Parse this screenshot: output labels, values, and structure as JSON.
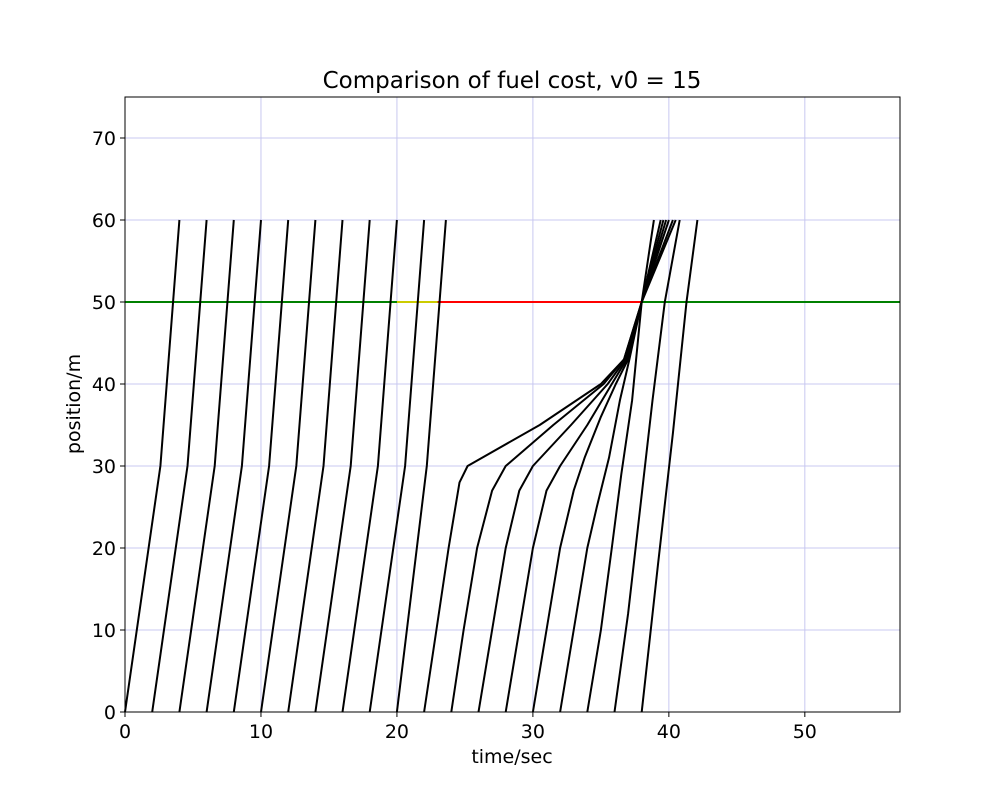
{
  "chart_data": {
    "type": "line",
    "title": "Comparison of fuel cost, v0 = 15",
    "xlabel": "time/sec",
    "ylabel": "position/m",
    "xlim": [
      0,
      57
    ],
    "ylim": [
      0,
      75
    ],
    "xticks": [
      0,
      10,
      20,
      30,
      40,
      50
    ],
    "yticks": [
      0,
      10,
      20,
      30,
      40,
      50,
      60,
      70
    ],
    "grid": true,
    "grid_color": "#c8c8f0",
    "legend": "none",
    "stop_line": {
      "position": 50,
      "base_color": "#008000",
      "segments": [
        {
          "t_start": 20,
          "t_end": 23,
          "color": "#cccc00"
        },
        {
          "t_start": 23,
          "t_end": 38,
          "color": "#ff0000"
        }
      ]
    },
    "trajectory_color": "#000000",
    "series": [
      {
        "values": [
          [
            0,
            0
          ],
          [
            2.6,
            30
          ],
          [
            4,
            60
          ]
        ]
      },
      {
        "values": [
          [
            2,
            0
          ],
          [
            4.6,
            30
          ],
          [
            6,
            60
          ]
        ]
      },
      {
        "values": [
          [
            4,
            0
          ],
          [
            6.6,
            30
          ],
          [
            8,
            60
          ]
        ]
      },
      {
        "values": [
          [
            6,
            0
          ],
          [
            8.6,
            30
          ],
          [
            10,
            60
          ]
        ]
      },
      {
        "values": [
          [
            8,
            0
          ],
          [
            10.6,
            30
          ],
          [
            12,
            60
          ]
        ]
      },
      {
        "values": [
          [
            10,
            0
          ],
          [
            12.6,
            30
          ],
          [
            14,
            60
          ]
        ]
      },
      {
        "values": [
          [
            12,
            0
          ],
          [
            14.6,
            30
          ],
          [
            16,
            60
          ]
        ]
      },
      {
        "values": [
          [
            14,
            0
          ],
          [
            16.6,
            30
          ],
          [
            18,
            60
          ]
        ]
      },
      {
        "values": [
          [
            16,
            0
          ],
          [
            18.6,
            30
          ],
          [
            20,
            60
          ]
        ]
      },
      {
        "values": [
          [
            18,
            0
          ],
          [
            20.6,
            30
          ],
          [
            22,
            60
          ]
        ]
      },
      {
        "values": [
          [
            20,
            0
          ],
          [
            22.2,
            30
          ],
          [
            23.6,
            60
          ]
        ]
      },
      {
        "values": [
          [
            22,
            0
          ],
          [
            22.9,
            10
          ],
          [
            23.8,
            20
          ],
          [
            24.6,
            28
          ],
          [
            25.2,
            30
          ],
          [
            30.5,
            35
          ],
          [
            35,
            40
          ],
          [
            36.7,
            43
          ],
          [
            38,
            50
          ],
          [
            40.5,
            60
          ]
        ]
      },
      {
        "values": [
          [
            24,
            0
          ],
          [
            24.9,
            10
          ],
          [
            25.9,
            20
          ],
          [
            27,
            27
          ],
          [
            28,
            30
          ],
          [
            31.5,
            35
          ],
          [
            35.2,
            40
          ],
          [
            36.7,
            43
          ],
          [
            38,
            50
          ],
          [
            40.3,
            60
          ]
        ]
      },
      {
        "values": [
          [
            26,
            0
          ],
          [
            27,
            10
          ],
          [
            28,
            20
          ],
          [
            29,
            27
          ],
          [
            30,
            30
          ],
          [
            32.8,
            35
          ],
          [
            35.5,
            40
          ],
          [
            36.8,
            43
          ],
          [
            38,
            50
          ],
          [
            40,
            60
          ]
        ]
      },
      {
        "values": [
          [
            28,
            0
          ],
          [
            29,
            10
          ],
          [
            30,
            20
          ],
          [
            31,
            27
          ],
          [
            32,
            30
          ],
          [
            34,
            35
          ],
          [
            35.8,
            40
          ],
          [
            36.9,
            43
          ],
          [
            38,
            50
          ],
          [
            39.8,
            60
          ]
        ]
      },
      {
        "values": [
          [
            30,
            0
          ],
          [
            31,
            10
          ],
          [
            32,
            20
          ],
          [
            33,
            27
          ],
          [
            33.8,
            31
          ],
          [
            35,
            36
          ],
          [
            36.1,
            40
          ],
          [
            37,
            43
          ],
          [
            38,
            50
          ],
          [
            39.6,
            60
          ]
        ]
      },
      {
        "values": [
          [
            32,
            0
          ],
          [
            33,
            10
          ],
          [
            34,
            20
          ],
          [
            34.7,
            25
          ],
          [
            35.6,
            31
          ],
          [
            36.4,
            38
          ],
          [
            37.1,
            43
          ],
          [
            38,
            50
          ],
          [
            39.4,
            60
          ]
        ]
      },
      {
        "values": [
          [
            34,
            0
          ],
          [
            35,
            10
          ],
          [
            35.8,
            20
          ],
          [
            36.5,
            29
          ],
          [
            37.3,
            38
          ],
          [
            38,
            50
          ],
          [
            38.9,
            60
          ]
        ]
      },
      {
        "values": [
          [
            36,
            0
          ],
          [
            37,
            12
          ],
          [
            37.9,
            25
          ],
          [
            38.8,
            38
          ],
          [
            39.7,
            50
          ],
          [
            40.8,
            60
          ]
        ]
      },
      {
        "values": [
          [
            38,
            0
          ],
          [
            39.2,
            18
          ],
          [
            40.3,
            34
          ],
          [
            41.3,
            50
          ],
          [
            42.1,
            60
          ]
        ]
      }
    ]
  }
}
